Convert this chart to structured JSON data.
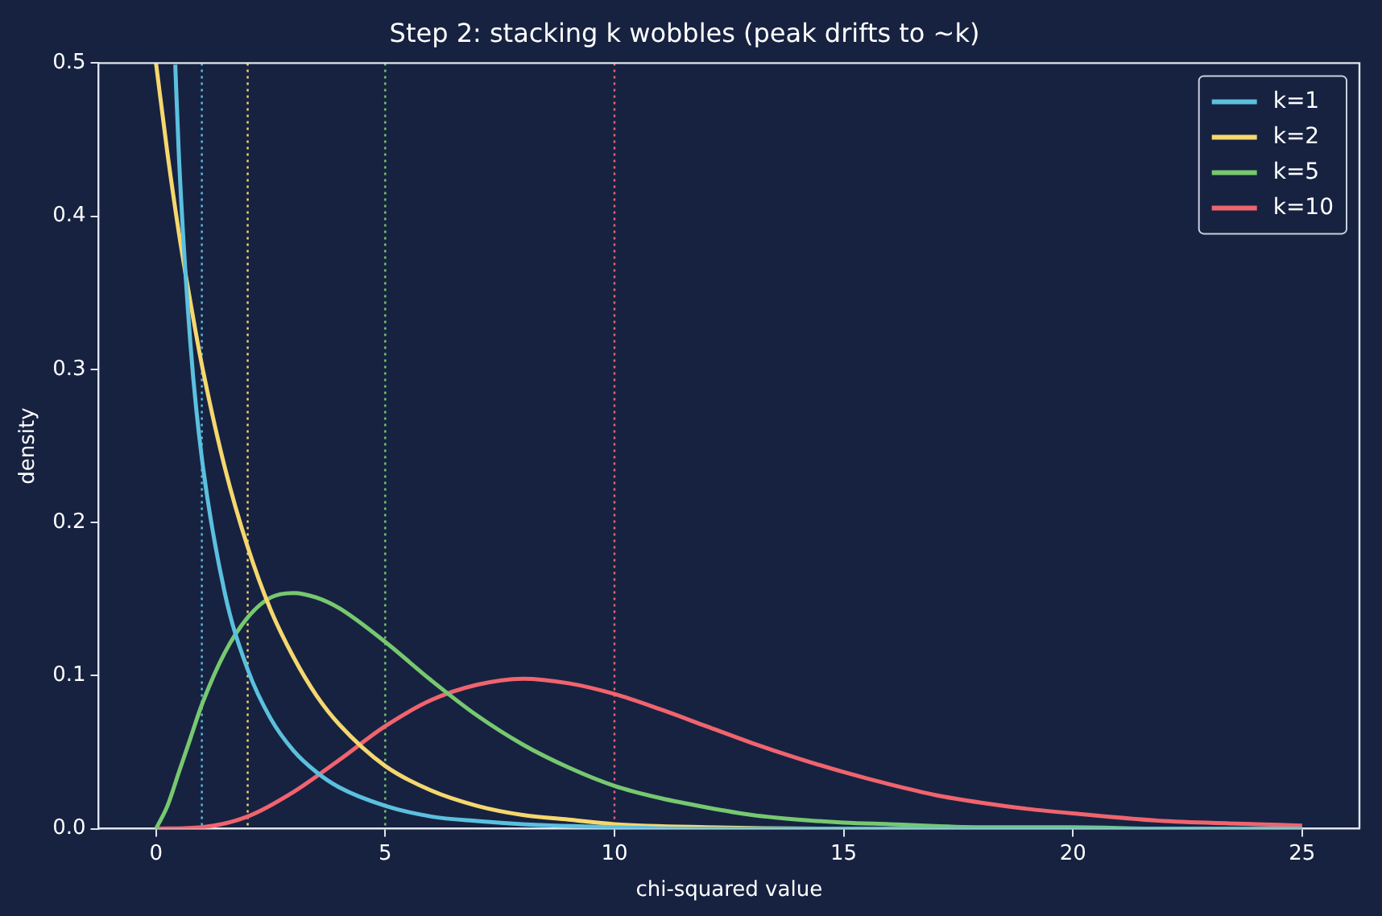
{
  "chart_data": {
    "type": "line",
    "title": "Step 2: stacking k wobbles (peak drifts to ~k)",
    "xlabel": "chi-squared value",
    "ylabel": "density",
    "xlim": [
      -1.25,
      26.25
    ],
    "ylim": [
      0,
      0.5
    ],
    "xticks": [
      0,
      5,
      10,
      15,
      20,
      25
    ],
    "yticks": [
      {
        "value": 0,
        "label": "0.0"
      },
      0.1,
      0.2,
      0.3,
      0.4,
      0.5
    ],
    "grid": false,
    "legend": "top right",
    "marker": "none",
    "line_style": "solid",
    "series": [
      {
        "name": "k=1",
        "color": "#5bc0de",
        "x": [
          0.42,
          0.5,
          0.75,
          1,
          1.5,
          2,
          2.5,
          3,
          3.5,
          4,
          5,
          6,
          7,
          8,
          10,
          12,
          15,
          20,
          25
        ],
        "values": [
          0.499,
          0.439,
          0.317,
          0.242,
          0.154,
          0.104,
          0.072,
          0.051,
          0.037,
          0.027,
          0.015,
          0.008,
          0.005,
          0.003,
          0.001,
          0,
          0,
          0,
          0
        ]
      },
      {
        "name": "k=2",
        "color": "#f5d76e",
        "x": [
          0,
          0.25,
          0.5,
          0.75,
          1,
          1.5,
          2,
          2.5,
          3,
          3.5,
          4,
          5,
          6,
          7,
          8,
          9,
          10,
          12,
          15,
          20,
          25
        ],
        "values": [
          0.5,
          0.441,
          0.389,
          0.344,
          0.303,
          0.236,
          0.184,
          0.143,
          0.112,
          0.087,
          0.068,
          0.041,
          0.025,
          0.015,
          0.009,
          0.006,
          0.003,
          0.001,
          0,
          0,
          0
        ]
      },
      {
        "name": "k=5",
        "color": "#77c86f",
        "x": [
          0,
          0.25,
          0.5,
          0.75,
          1,
          1.5,
          2,
          2.5,
          3,
          3.5,
          4,
          5,
          6,
          7,
          8,
          9,
          10,
          11,
          12,
          13,
          14,
          15,
          16,
          18,
          20,
          22,
          25
        ],
        "values": [
          0,
          0.015,
          0.037,
          0.059,
          0.081,
          0.115,
          0.138,
          0.151,
          0.154,
          0.151,
          0.144,
          0.122,
          0.097,
          0.074,
          0.055,
          0.04,
          0.028,
          0.02,
          0.014,
          0.009,
          0.006,
          0.004,
          0.003,
          0.001,
          0.001,
          0,
          0
        ]
      },
      {
        "name": "k=10",
        "color": "#f0646e",
        "x": [
          0,
          1,
          2,
          3,
          4,
          5,
          6,
          7,
          8,
          9,
          10,
          11,
          12,
          13,
          14,
          15,
          16,
          17,
          18,
          19,
          20,
          22,
          24,
          25
        ],
        "values": [
          0,
          0.001,
          0.008,
          0.024,
          0.045,
          0.067,
          0.084,
          0.094,
          0.098,
          0.095,
          0.088,
          0.078,
          0.067,
          0.056,
          0.046,
          0.037,
          0.029,
          0.022,
          0.017,
          0.013,
          0.01,
          0.005,
          0.003,
          0.002
        ]
      }
    ],
    "ref_lines": [
      {
        "axis": "x",
        "value": 1,
        "color": "#5bc0de",
        "line_style": "dotted"
      },
      {
        "axis": "x",
        "value": 2,
        "color": "#f5d76e",
        "line_style": "dotted"
      },
      {
        "axis": "x",
        "value": 5,
        "color": "#77c86f",
        "line_style": "dotted"
      },
      {
        "axis": "x",
        "value": 10,
        "color": "#f0646e",
        "line_style": "dotted"
      }
    ]
  }
}
